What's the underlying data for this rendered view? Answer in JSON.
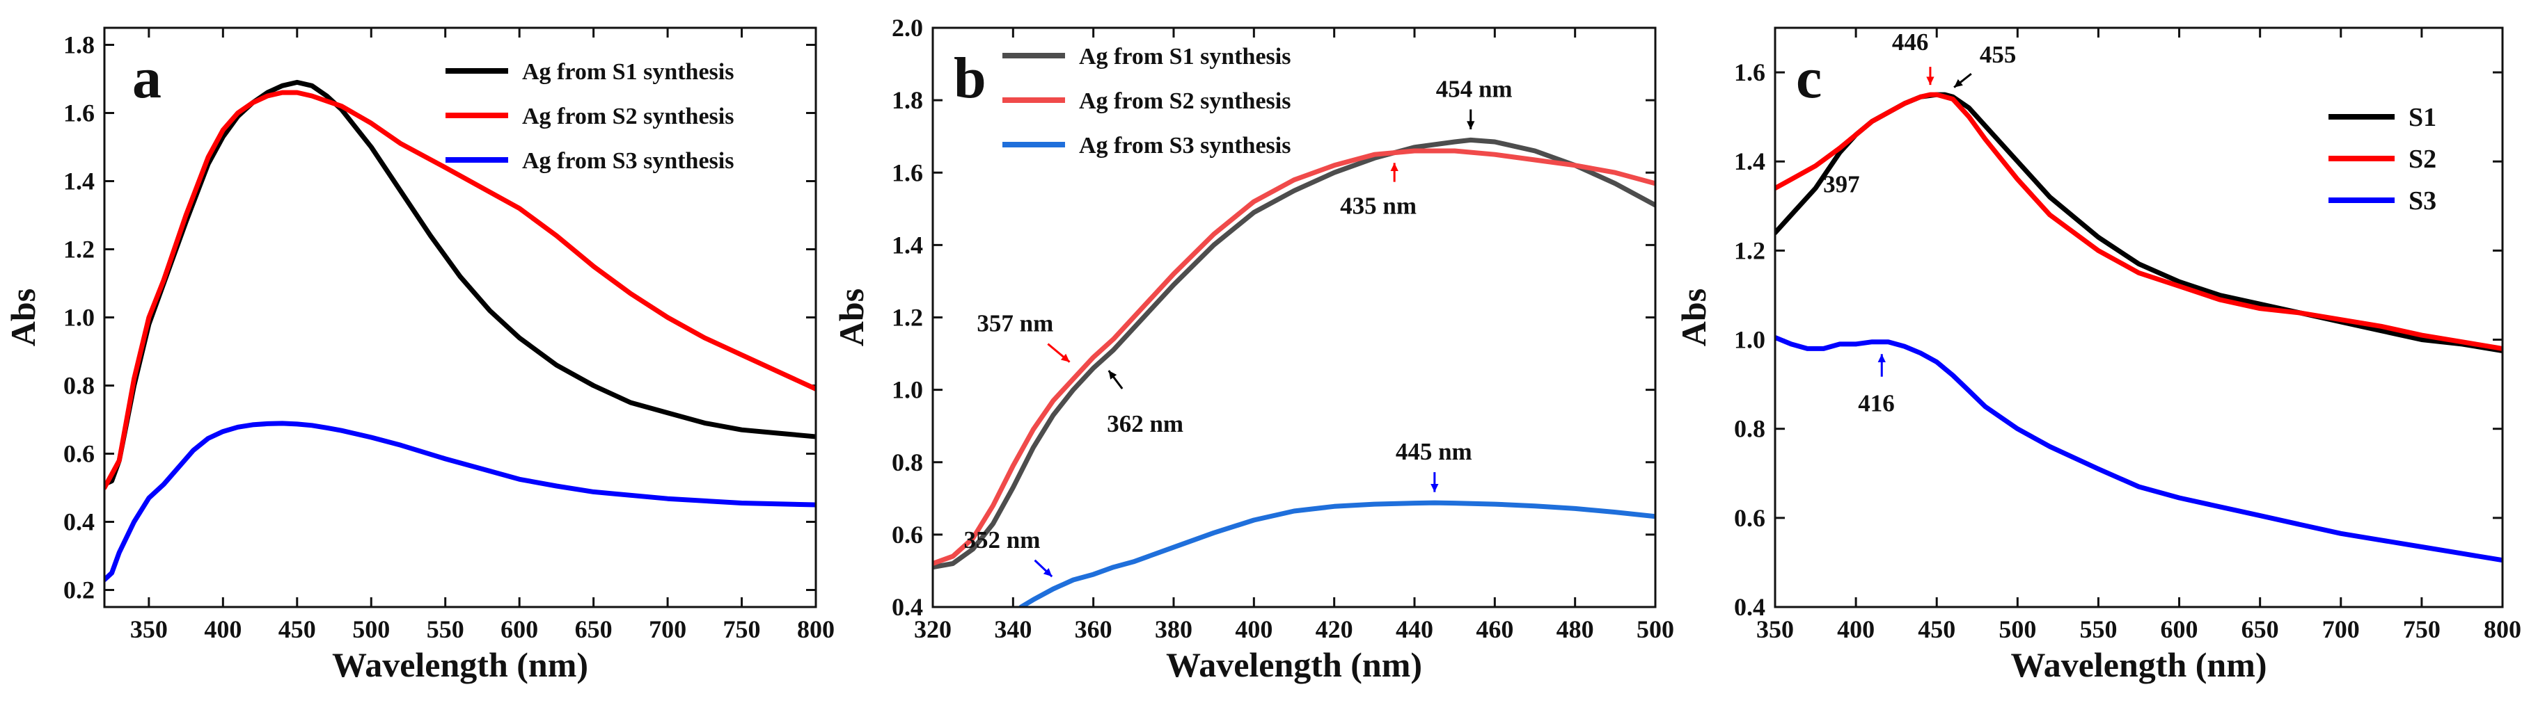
{
  "chart_data": [
    {
      "type": "line",
      "panel_letter": "a",
      "xlabel": "Wavelength (nm)",
      "ylabel": "Abs",
      "xlim": [
        320,
        800
      ],
      "ylim": [
        0.15,
        1.85
      ],
      "xticks": [
        350,
        400,
        450,
        500,
        550,
        600,
        650,
        700,
        750,
        800
      ],
      "yticks": [
        0.2,
        0.4,
        0.6,
        0.8,
        1.0,
        1.2,
        1.4,
        1.6,
        1.8
      ],
      "legend_position": "top-right",
      "series": [
        {
          "name": "Ag from S1 synthesis",
          "color": "#000000",
          "x": [
            320,
            325,
            330,
            340,
            350,
            360,
            375,
            390,
            400,
            410,
            420,
            430,
            440,
            450,
            460,
            470,
            480,
            500,
            520,
            540,
            560,
            580,
            600,
            625,
            650,
            675,
            700,
            725,
            750,
            775,
            800
          ],
          "y": [
            0.51,
            0.52,
            0.58,
            0.8,
            0.98,
            1.1,
            1.28,
            1.45,
            1.53,
            1.59,
            1.63,
            1.66,
            1.68,
            1.69,
            1.68,
            1.65,
            1.61,
            1.5,
            1.37,
            1.24,
            1.12,
            1.02,
            0.94,
            0.86,
            0.8,
            0.75,
            0.72,
            0.69,
            0.67,
            0.66,
            0.65
          ]
        },
        {
          "name": "Ag from S2 synthesis",
          "color": "#ff0000",
          "x": [
            320,
            330,
            340,
            350,
            360,
            375,
            390,
            400,
            410,
            420,
            430,
            440,
            450,
            460,
            480,
            500,
            520,
            550,
            575,
            600,
            625,
            650,
            675,
            700,
            725,
            750,
            775,
            800
          ],
          "y": [
            0.5,
            0.58,
            0.82,
            1.0,
            1.11,
            1.3,
            1.47,
            1.55,
            1.6,
            1.63,
            1.65,
            1.66,
            1.66,
            1.65,
            1.62,
            1.57,
            1.51,
            1.44,
            1.38,
            1.32,
            1.24,
            1.15,
            1.07,
            1.0,
            0.94,
            0.89,
            0.84,
            0.79
          ]
        },
        {
          "name": "Ag from S3 synthesis",
          "color": "#0000ff",
          "x": [
            320,
            325,
            330,
            340,
            350,
            360,
            370,
            380,
            390,
            400,
            410,
            420,
            430,
            440,
            450,
            460,
            470,
            480,
            500,
            520,
            550,
            575,
            600,
            625,
            650,
            700,
            750,
            800
          ],
          "y": [
            0.23,
            0.25,
            0.31,
            0.4,
            0.47,
            0.51,
            0.56,
            0.61,
            0.645,
            0.665,
            0.678,
            0.685,
            0.688,
            0.689,
            0.687,
            0.683,
            0.676,
            0.668,
            0.648,
            0.625,
            0.585,
            0.555,
            0.525,
            0.505,
            0.488,
            0.468,
            0.455,
            0.45
          ]
        }
      ],
      "annotations": []
    },
    {
      "type": "line",
      "panel_letter": "b",
      "xlabel": "Wavelength (nm)",
      "ylabel": "Abs",
      "xlim": [
        320,
        500
      ],
      "ylim": [
        0.4,
        2.0
      ],
      "xticks": [
        320,
        340,
        360,
        380,
        400,
        420,
        440,
        460,
        480,
        500
      ],
      "yticks": [
        0.4,
        0.6,
        0.8,
        1.0,
        1.2,
        1.4,
        1.6,
        1.8,
        2.0
      ],
      "legend_position": "top-left",
      "series": [
        {
          "name": "Ag from S1 synthesis",
          "color": "#4d4d4d",
          "x": [
            320,
            325,
            330,
            335,
            340,
            345,
            350,
            355,
            360,
            365,
            370,
            380,
            390,
            400,
            410,
            420,
            430,
            440,
            450,
            454,
            460,
            470,
            480,
            490,
            500
          ],
          "y": [
            0.51,
            0.52,
            0.56,
            0.63,
            0.73,
            0.84,
            0.93,
            1.0,
            1.06,
            1.11,
            1.17,
            1.29,
            1.4,
            1.49,
            1.55,
            1.6,
            1.64,
            1.67,
            1.685,
            1.69,
            1.685,
            1.66,
            1.62,
            1.57,
            1.51
          ]
        },
        {
          "name": "Ag from S2 synthesis",
          "color": "#f04a4a",
          "x": [
            320,
            325,
            330,
            335,
            340,
            345,
            350,
            355,
            360,
            365,
            370,
            380,
            390,
            400,
            410,
            420,
            430,
            435,
            440,
            450,
            460,
            470,
            480,
            490,
            500
          ],
          "y": [
            0.52,
            0.54,
            0.59,
            0.68,
            0.79,
            0.89,
            0.97,
            1.03,
            1.09,
            1.14,
            1.2,
            1.32,
            1.43,
            1.52,
            1.58,
            1.62,
            1.65,
            1.655,
            1.66,
            1.66,
            1.65,
            1.635,
            1.62,
            1.6,
            1.57
          ]
        },
        {
          "name": "Ag from S3 synthesis",
          "color": "#1f6fdb",
          "x": [
            342,
            345,
            350,
            355,
            360,
            365,
            370,
            380,
            390,
            400,
            410,
            420,
            430,
            440,
            445,
            450,
            460,
            470,
            480,
            490,
            500
          ],
          "y": [
            0.4,
            0.42,
            0.45,
            0.475,
            0.49,
            0.51,
            0.525,
            0.565,
            0.605,
            0.64,
            0.665,
            0.678,
            0.684,
            0.687,
            0.688,
            0.687,
            0.684,
            0.679,
            0.672,
            0.662,
            0.65
          ]
        }
      ],
      "annotations": [
        {
          "text": "454 nm",
          "color": "#000000",
          "x": 454,
          "y": 1.69,
          "dir": "down"
        },
        {
          "text": "435 nm",
          "color": "#ff0000",
          "x": 435,
          "y": 1.655,
          "dir": "up"
        },
        {
          "text": "357 nm",
          "color": "#ff0000",
          "x": 357,
          "y": 1.05,
          "dir": "down-right"
        },
        {
          "text": "362 nm",
          "color": "#000000",
          "x": 362,
          "y": 1.08,
          "dir": "up-left"
        },
        {
          "text": "445 nm",
          "color": "#0000ff",
          "x": 445,
          "y": 0.688,
          "dir": "down"
        },
        {
          "text": "352 nm",
          "color": "#0000ff",
          "x": 352,
          "y": 0.46,
          "dir": "down-right"
        }
      ]
    },
    {
      "type": "line",
      "panel_letter": "c",
      "xlabel": "Wavelength (nm)",
      "ylabel": "Abs",
      "xlim": [
        350,
        800
      ],
      "ylim": [
        0.4,
        1.7
      ],
      "xticks": [
        350,
        400,
        450,
        500,
        550,
        600,
        650,
        700,
        750,
        800
      ],
      "yticks": [
        0.4,
        0.6,
        0.8,
        1.0,
        1.2,
        1.4,
        1.6
      ],
      "legend_position": "right",
      "series": [
        {
          "name": "S1",
          "color": "#000000",
          "x": [
            350,
            360,
            375,
            390,
            400,
            410,
            420,
            430,
            440,
            450,
            455,
            460,
            470,
            480,
            500,
            520,
            550,
            575,
            600,
            625,
            650,
            675,
            700,
            725,
            750,
            775,
            800
          ],
          "y": [
            1.24,
            1.28,
            1.34,
            1.42,
            1.46,
            1.49,
            1.51,
            1.53,
            1.545,
            1.55,
            1.55,
            1.545,
            1.52,
            1.48,
            1.4,
            1.32,
            1.23,
            1.17,
            1.13,
            1.1,
            1.08,
            1.06,
            1.04,
            1.02,
            1.0,
            0.99,
            0.975
          ]
        },
        {
          "name": "S2",
          "color": "#ff0000",
          "x": [
            350,
            360,
            375,
            390,
            400,
            410,
            420,
            430,
            440,
            446,
            450,
            460,
            470,
            480,
            500,
            520,
            550,
            575,
            600,
            625,
            650,
            675,
            700,
            725,
            750,
            775,
            800
          ],
          "y": [
            1.34,
            1.36,
            1.39,
            1.43,
            1.46,
            1.49,
            1.51,
            1.53,
            1.545,
            1.55,
            1.55,
            1.54,
            1.5,
            1.45,
            1.36,
            1.28,
            1.2,
            1.15,
            1.12,
            1.09,
            1.07,
            1.06,
            1.045,
            1.03,
            1.01,
            0.995,
            0.98
          ]
        },
        {
          "name": "S3",
          "color": "#0000ff",
          "x": [
            350,
            360,
            370,
            380,
            390,
            400,
            410,
            416,
            420,
            430,
            440,
            450,
            460,
            470,
            480,
            500,
            520,
            550,
            575,
            600,
            625,
            650,
            675,
            700,
            725,
            750,
            775,
            800
          ],
          "y": [
            1.005,
            0.99,
            0.98,
            0.98,
            0.99,
            0.99,
            0.995,
            0.995,
            0.995,
            0.985,
            0.97,
            0.95,
            0.92,
            0.885,
            0.85,
            0.8,
            0.76,
            0.71,
            0.67,
            0.645,
            0.625,
            0.605,
            0.585,
            0.565,
            0.55,
            0.535,
            0.52,
            0.505
          ]
        }
      ],
      "annotations": [
        {
          "text": "446",
          "color": "#ff0000",
          "x": 446,
          "y": 1.55,
          "dir": "down"
        },
        {
          "text": "455",
          "color": "#000000",
          "x": 455,
          "y": 1.55,
          "dir": "down-left"
        },
        {
          "text": "397",
          "color": "#000000",
          "x": 397,
          "y": 1.44,
          "dir": "none"
        },
        {
          "text": "416",
          "color": "#0000ff",
          "x": 416,
          "y": 0.995,
          "dir": "up"
        }
      ]
    }
  ]
}
